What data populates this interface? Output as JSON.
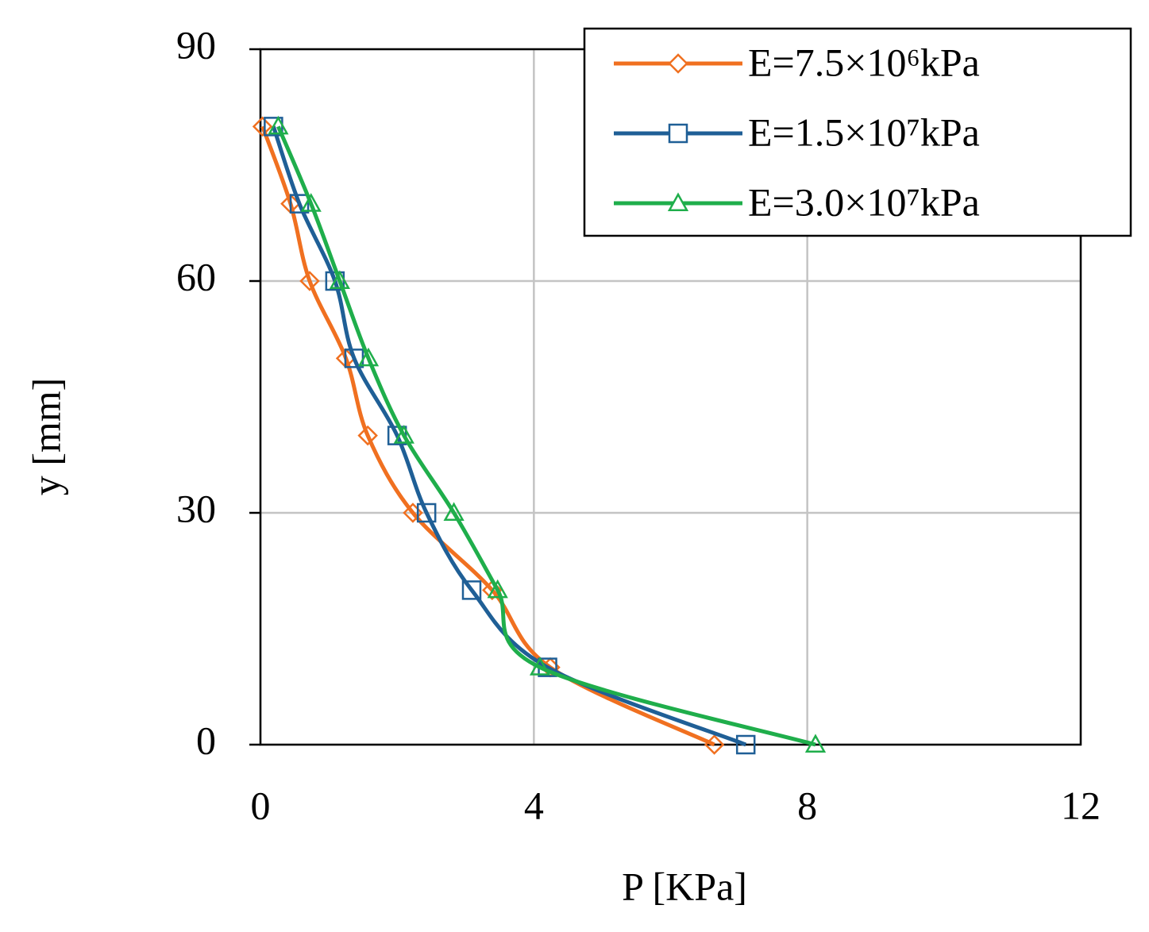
{
  "chart_data": {
    "type": "line",
    "xlabel": "P [KPa]",
    "ylabel": "y [mm]",
    "xlim": [
      0,
      12
    ],
    "xticks": [
      0,
      4,
      8,
      12
    ],
    "ylim": [
      0,
      90
    ],
    "yticks": [
      0,
      30,
      60,
      90
    ],
    "grid": true,
    "legend": "upper right",
    "series": [
      {
        "name": "E=7.5×10⁶kPa",
        "color": "#f07020",
        "marker": "diamond",
        "x": [
          0.03,
          0.44,
          0.72,
          1.25,
          1.57,
          2.23,
          3.39,
          4.24,
          6.64
        ],
        "values": [
          80,
          70,
          60,
          50,
          40,
          30,
          20,
          10,
          0
        ]
      },
      {
        "name": "E=1.5×10⁷kPa",
        "color": "#1f5f96",
        "marker": "square",
        "x": [
          0.19,
          0.57,
          1.09,
          1.37,
          2.0,
          2.43,
          3.09,
          4.2,
          7.1
        ],
        "values": [
          80,
          70,
          60,
          50,
          40,
          30,
          20,
          10,
          0
        ]
      },
      {
        "name": "E=3.0×10⁷kPa",
        "color": "#1fae4b",
        "marker": "triangle",
        "x": [
          0.26,
          0.74,
          1.16,
          1.58,
          2.1,
          2.83,
          3.47,
          4.09,
          8.12
        ],
        "values": [
          80,
          70,
          60,
          50,
          40,
          30,
          20,
          10,
          0
        ]
      }
    ]
  }
}
